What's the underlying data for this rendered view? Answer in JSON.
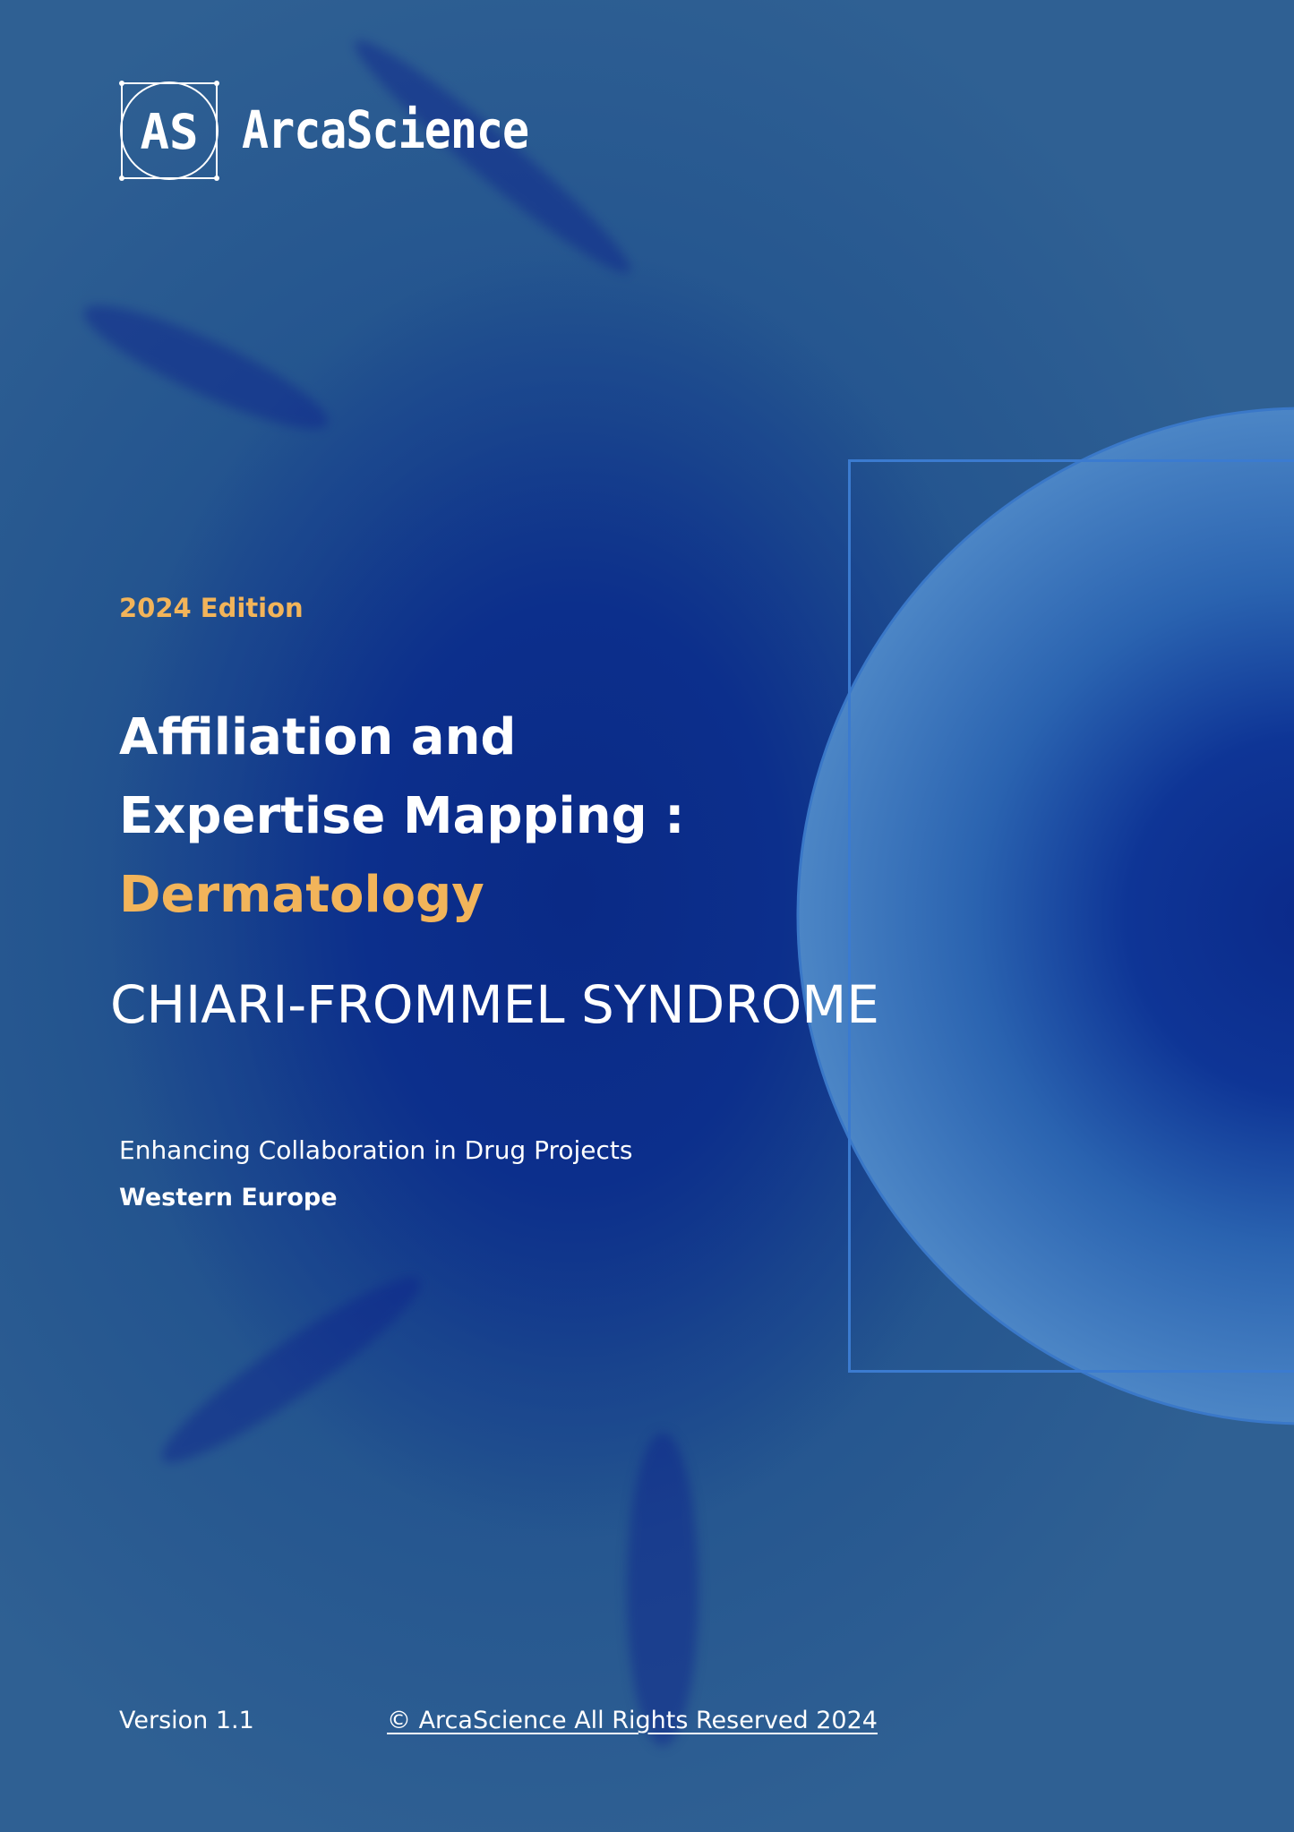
{
  "brand": {
    "logo_text": "AS",
    "name": "ArcaScience"
  },
  "cover": {
    "edition": "2024 Edition",
    "title_line1": "Affiliation and",
    "title_line2": "Expertise Mapping :",
    "title_accent": "Dermatology",
    "disease": "CHIARI-FROMMEL SYNDROME",
    "tagline": "Enhancing Collaboration in Drug Projects",
    "region": "Western Europe"
  },
  "footer": {
    "version": "Version 1.1",
    "copyright": "© ArcaScience All Rights Reserved 2024"
  },
  "colors": {
    "accent": "#f2b45a",
    "background": "#0c2f8c",
    "frame": "#3b7bd0"
  }
}
